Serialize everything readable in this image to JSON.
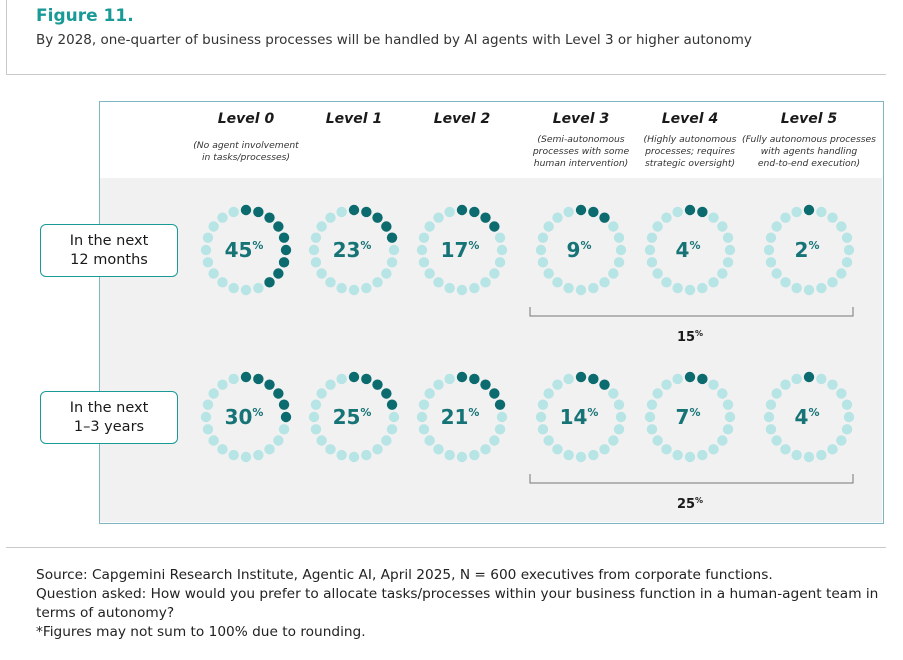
{
  "figure": {
    "label": "Figure 11.",
    "subtitle": "By 2028, one-quarter of business processes will be handled by AI agents with Level 3 or higher autonomy"
  },
  "colors": {
    "accent": "#1a9a97",
    "filled_dot": "#0b6b6e",
    "empty_dot": "#b7e4e5",
    "value_text": "#167376",
    "band_bg": "#f1f1f1",
    "panel_border": "#7fb6c2"
  },
  "levels": [
    {
      "title": "Level 0",
      "desc": [
        "(No agent involvement",
        "in tasks/processes)"
      ]
    },
    {
      "title": "Level 1",
      "desc": []
    },
    {
      "title": "Level 2",
      "desc": []
    },
    {
      "title": "Level 3",
      "desc": [
        "(Semi-autonomous",
        "processes with some",
        "human intervention)"
      ]
    },
    {
      "title": "Level 4",
      "desc": [
        "(Highly autonomous",
        "processes; requires",
        "strategic oversight)"
      ]
    },
    {
      "title": "Level 5",
      "desc": [
        "(Fully autonomous processes",
        "with agents handling",
        "end-to-end execution)"
      ]
    }
  ],
  "rows": [
    {
      "label_line1": "In the next",
      "label_line2": "12 months"
    },
    {
      "label_line1": "In the next",
      "label_line2": "1–3 years"
    }
  ],
  "chart_data": {
    "type": "dot-donut",
    "title": "By 2028, one-quarter of business processes will be handled by AI agents with Level 3 or higher autonomy",
    "categories": [
      "Level 0",
      "Level 1",
      "Level 2",
      "Level 3",
      "Level 4",
      "Level 5"
    ],
    "series": [
      {
        "name": "In the next 12 months",
        "values": [
          45,
          23,
          17,
          9,
          4,
          2
        ],
        "filled_dots": [
          9,
          5,
          4,
          3,
          2,
          1
        ],
        "level3_plus_total": 15
      },
      {
        "name": "In the next 1–3 years",
        "values": [
          30,
          25,
          21,
          14,
          7,
          4
        ],
        "filled_dots": [
          6,
          5,
          5,
          3,
          2,
          1
        ],
        "level3_plus_total": 25
      }
    ],
    "dots_per_ring": 20,
    "unit": "%",
    "bracket_scope": "Level 3 – Level 5"
  },
  "source": {
    "line1": "Source: Capgemini Research Institute, Agentic AI, April 2025, N = 600 executives from corporate functions.",
    "line2": "Question asked: How would you prefer to allocate tasks/processes within your business function in a human-agent team in terms of autonomy?",
    "line3": "*Figures may not sum to 100% due to rounding."
  }
}
